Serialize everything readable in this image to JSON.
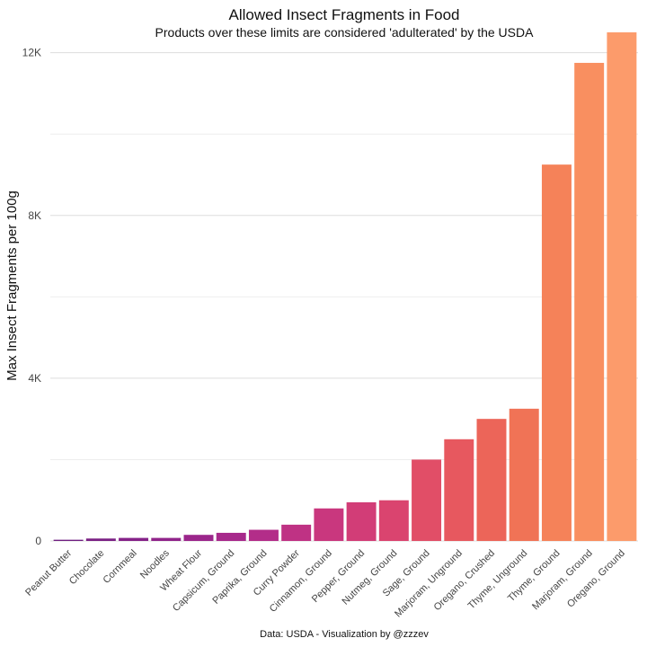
{
  "chart_data": {
    "type": "bar",
    "title": "Allowed Insect Fragments in Food",
    "subtitle": "Products over these limits are considered 'adulterated' by the USDA",
    "xlabel": "",
    "ylabel": "Max Insect Fragments per 100g",
    "ylim": [
      0,
      12500
    ],
    "yticks": [
      0,
      4000,
      8000,
      12000
    ],
    "ytick_labels": [
      "0",
      "4K",
      "8K",
      "12K"
    ],
    "grid": true,
    "legend": "none",
    "categories": [
      "Peanut Butter",
      "Chocolate",
      "Cornmeal",
      "Noodles",
      "Wheat Flour",
      "Capsicum, Ground",
      "Paprika, Ground",
      "Curry Powder",
      "Cinnamon, Ground",
      "Pepper, Ground",
      "Nutmeg, Ground",
      "Sage, Ground",
      "Marjoram, Unground",
      "Oregano, Crushed",
      "Thyme, Unground",
      "Thyme, Ground",
      "Marjoram, Ground",
      "Oregano, Ground"
    ],
    "values": [
      30,
      60,
      75,
      75,
      150,
      200,
      275,
      400,
      800,
      950,
      1000,
      2000,
      2500,
      3000,
      3250,
      9250,
      11750,
      12500
    ],
    "colors": [
      "#6f1e80",
      "#7a2084",
      "#852288",
      "#90248a",
      "#9b268b",
      "#a7298b",
      "#b32d89",
      "#bf3284",
      "#c9377e",
      "#d23d77",
      "#da446f",
      "#e14e67",
      "#e7585f",
      "#ec6559",
      "#f07356",
      "#f58259",
      "#f98f60",
      "#fc9b6b"
    ],
    "caption": "Data: USDA   -   Visualization by @zzzev"
  }
}
